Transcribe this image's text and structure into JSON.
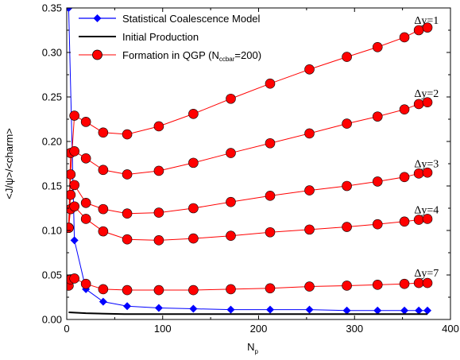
{
  "chart_data": {
    "type": "line",
    "xlabel_main": "N",
    "xlabel_sub": "p",
    "ylabel": "<J/ψ>/<charm>",
    "xlim": [
      0,
      400
    ],
    "ylim": [
      0,
      0.35
    ],
    "xticks": [
      0,
      100,
      200,
      300,
      400
    ],
    "yticks": [
      0.0,
      0.05,
      0.1,
      0.15,
      0.2,
      0.25,
      0.3,
      0.35
    ],
    "ytick_labels": [
      "0.00",
      "0.05",
      "0.10",
      "0.15",
      "0.20",
      "0.25",
      "0.30",
      "0.35"
    ],
    "grid": false,
    "legend_position": "top-left",
    "legend": [
      {
        "label": "Statistical Coalescence Model",
        "color": "#0000ff",
        "marker": "diamond"
      },
      {
        "label": "Initial Production",
        "color": "#000000",
        "marker": "none"
      },
      {
        "label_main": "Formation in QGP (N",
        "label_sub": "ccbar",
        "label_tail": "=200)",
        "color": "#ff0000",
        "marker": "circle"
      }
    ],
    "annotations": [
      {
        "text": "Δy=1",
        "x": 375,
        "y": 0.332
      },
      {
        "text": "Δy=2",
        "x": 375,
        "y": 0.25
      },
      {
        "text": "Δy=3",
        "x": 375,
        "y": 0.171
      },
      {
        "text": "Δy=4",
        "x": 375,
        "y": 0.119
      },
      {
        "text": "Δy=7",
        "x": 375,
        "y": 0.048
      }
    ],
    "series": [
      {
        "name": "Statistical Coalescence Model",
        "color": "#0000ff",
        "marker": "diamond",
        "x": [
          2,
          8,
          20,
          38,
          63,
          96,
          132,
          171,
          212,
          253,
          292,
          324,
          352,
          367,
          376
        ],
        "y": [
          0.35,
          0.089,
          0.034,
          0.02,
          0.015,
          0.013,
          0.012,
          0.011,
          0.011,
          0.011,
          0.01,
          0.01,
          0.01,
          0.01,
          0.01
        ],
        "clipped_start": {
          "x": 0.5,
          "y": 0.6
        }
      },
      {
        "name": "Initial Production",
        "color": "#000000",
        "marker": "none",
        "x": [
          2,
          20,
          60,
          100,
          150,
          200,
          250,
          300,
          350,
          376
        ],
        "y": [
          0.008,
          0.007,
          0.006,
          0.006,
          0.006,
          0.006,
          0.006,
          0.006,
          0.006,
          0.006
        ]
      },
      {
        "name": "Δy=1",
        "color": "#ff0000",
        "marker": "circle",
        "x": [
          2,
          4,
          8,
          20,
          38,
          63,
          96,
          132,
          171,
          212,
          253,
          292,
          324,
          352,
          367,
          376
        ],
        "y": [
          0.103,
          0.163,
          0.229,
          0.222,
          0.21,
          0.208,
          0.217,
          0.231,
          0.248,
          0.265,
          0.281,
          0.295,
          0.306,
          0.317,
          0.325,
          0.328
        ]
      },
      {
        "name": "Δy=2",
        "color": "#ff0000",
        "marker": "circle",
        "x": [
          2,
          4,
          8,
          20,
          38,
          63,
          96,
          132,
          171,
          212,
          253,
          292,
          324,
          352,
          367,
          376
        ],
        "y": [
          0.103,
          0.187,
          0.189,
          0.181,
          0.168,
          0.163,
          0.167,
          0.176,
          0.187,
          0.198,
          0.209,
          0.22,
          0.228,
          0.236,
          0.242,
          0.244
        ]
      },
      {
        "name": "Δy=3",
        "color": "#ff0000",
        "marker": "circle",
        "x": [
          2,
          4,
          8,
          20,
          38,
          63,
          96,
          132,
          171,
          212,
          253,
          292,
          324,
          352,
          367,
          376
        ],
        "y": [
          0.103,
          0.14,
          0.151,
          0.131,
          0.124,
          0.119,
          0.12,
          0.125,
          0.132,
          0.139,
          0.145,
          0.15,
          0.155,
          0.16,
          0.164,
          0.165
        ]
      },
      {
        "name": "Δy=4",
        "color": "#ff0000",
        "marker": "circle",
        "x": [
          2,
          4,
          8,
          20,
          38,
          63,
          96,
          132,
          171,
          212,
          253,
          292,
          324,
          352,
          367,
          376
        ],
        "y": [
          0.103,
          0.124,
          0.127,
          0.113,
          0.099,
          0.09,
          0.089,
          0.091,
          0.094,
          0.098,
          0.101,
          0.104,
          0.107,
          0.11,
          0.112,
          0.113
        ]
      },
      {
        "name": "Δy=7",
        "color": "#ff0000",
        "marker": "circle",
        "x": [
          2,
          4,
          8,
          20,
          38,
          63,
          96,
          132,
          171,
          212,
          253,
          292,
          324,
          352,
          367,
          376
        ],
        "y": [
          0.038,
          0.045,
          0.046,
          0.04,
          0.034,
          0.033,
          0.033,
          0.033,
          0.034,
          0.035,
          0.037,
          0.038,
          0.039,
          0.04,
          0.041,
          0.041
        ]
      }
    ]
  }
}
